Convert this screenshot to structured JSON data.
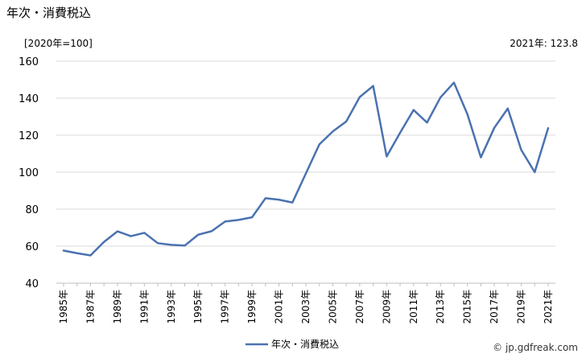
{
  "page": {
    "title": "年次・消費税込",
    "unit_label": "[2020年=100]",
    "latest_label": "2021年: 123.8",
    "credit": "© jp.gdfreak.com"
  },
  "chart_data": {
    "type": "line",
    "title": "年次・消費税込",
    "xlabel": "",
    "ylabel": "[2020年=100]",
    "ylim": [
      40,
      160
    ],
    "yticks": [
      40,
      60,
      80,
      100,
      120,
      140,
      160
    ],
    "grid": true,
    "legend_position": "bottom",
    "x": [
      "1985年",
      "1986年",
      "1987年",
      "1988年",
      "1989年",
      "1990年",
      "1991年",
      "1992年",
      "1993年",
      "1994年",
      "1995年",
      "1996年",
      "1997年",
      "1998年",
      "1999年",
      "2000年",
      "2001年",
      "2002年",
      "2003年",
      "2004年",
      "2005年",
      "2006年",
      "2007年",
      "2008年",
      "2009年",
      "2010年",
      "2011年",
      "2012年",
      "2013年",
      "2014年",
      "2015年",
      "2016年",
      "2017年",
      "2018年",
      "2019年",
      "2020年",
      "2021年"
    ],
    "x_tick_labels": [
      "1985年",
      "1987年",
      "1989年",
      "1991年",
      "1993年",
      "1995年",
      "1997年",
      "1999年",
      "2001年",
      "2003年",
      "2005年",
      "2007年",
      "2009年",
      "2011年",
      "2013年",
      "2015年",
      "2017年",
      "2019年",
      "2021年"
    ],
    "series": [
      {
        "name": "年次・消費税込",
        "color": "#4a72b0",
        "values": [
          57.6,
          56.2,
          55.0,
          62.3,
          68.0,
          65.4,
          67.2,
          61.6,
          60.7,
          60.3,
          66.2,
          68.1,
          73.3,
          74.2,
          75.6,
          85.9,
          85.1,
          83.6,
          99.3,
          115.0,
          122.0,
          127.4,
          140.6,
          146.6,
          108.5,
          121.3,
          133.6,
          126.8,
          140.4,
          148.4,
          131.3,
          108.0,
          124.0,
          134.4,
          112.0,
          100.0,
          123.8
        ]
      }
    ]
  }
}
